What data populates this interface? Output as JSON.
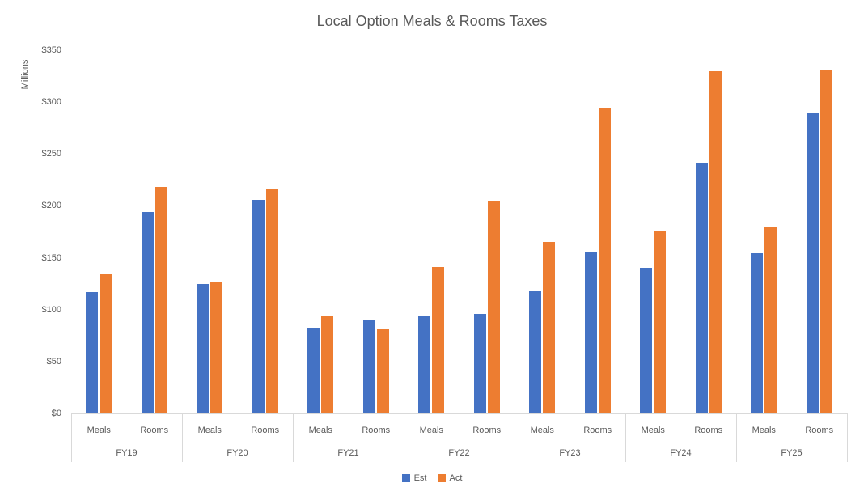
{
  "chart_data": {
    "type": "bar",
    "title": "Local Option Meals & Rooms Taxes",
    "ylabel": "Millions",
    "xlabel": "",
    "ylim": [
      0,
      350
    ],
    "ytick_step": 50,
    "ytick_labels": [
      "$0",
      "$50",
      "$100",
      "$150",
      "$200",
      "$250",
      "$300",
      "$350"
    ],
    "grid": false,
    "legend_position": "bottom",
    "categories": [
      "FY19",
      "FY20",
      "FY21",
      "FY22",
      "FY23",
      "FY24",
      "FY25"
    ],
    "subcategories": [
      "Meals",
      "Rooms"
    ],
    "series": [
      {
        "name": "Est",
        "color": "#4472C4"
      },
      {
        "name": "Act",
        "color": "#ED7D31"
      }
    ],
    "groups": [
      {
        "category": "FY19",
        "bars": [
          {
            "sub": "Meals",
            "values": [
              117,
              134
            ]
          },
          {
            "sub": "Rooms",
            "values": [
              194,
              218
            ]
          }
        ]
      },
      {
        "category": "FY20",
        "bars": [
          {
            "sub": "Meals",
            "values": [
              125,
              126
            ]
          },
          {
            "sub": "Rooms",
            "values": [
              206,
              216
            ]
          }
        ]
      },
      {
        "category": "FY21",
        "bars": [
          {
            "sub": "Meals",
            "values": [
              82,
              94
            ]
          },
          {
            "sub": "Rooms",
            "values": [
              90,
              81
            ]
          }
        ]
      },
      {
        "category": "FY22",
        "bars": [
          {
            "sub": "Meals",
            "values": [
              94,
              141
            ]
          },
          {
            "sub": "Rooms",
            "values": [
              96,
              205
            ]
          }
        ]
      },
      {
        "category": "FY23",
        "bars": [
          {
            "sub": "Meals",
            "values": [
              118,
              165
            ]
          },
          {
            "sub": "Rooms",
            "values": [
              156,
              294
            ]
          }
        ]
      },
      {
        "category": "FY24",
        "bars": [
          {
            "sub": "Meals",
            "values": [
              140,
              176
            ]
          },
          {
            "sub": "Rooms",
            "values": [
              242,
              330
            ]
          }
        ]
      },
      {
        "category": "FY25",
        "bars": [
          {
            "sub": "Meals",
            "values": [
              154,
              180
            ]
          },
          {
            "sub": "Rooms",
            "values": [
              289,
              331
            ]
          }
        ]
      }
    ]
  },
  "colors": {
    "text": "#595959",
    "axis_line": "#d9d9d9",
    "background": "#ffffff",
    "est": "#4472C4",
    "act": "#ED7D31"
  }
}
